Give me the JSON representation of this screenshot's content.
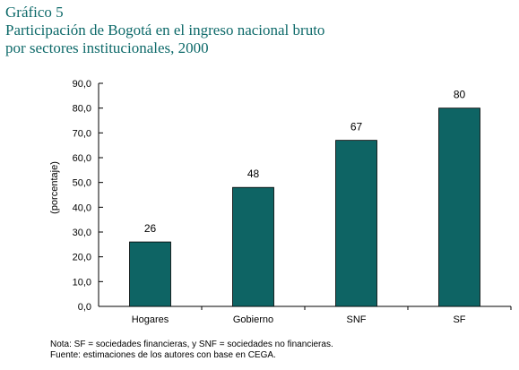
{
  "header": {
    "label": "Gráfico 5",
    "title_line1": "Participación de Bogotá en el ingreso nacional bruto",
    "title_line2": "por sectores institucionales, 2000"
  },
  "chart_data": {
    "type": "bar",
    "categories": [
      "Hogares",
      "Gobierno",
      "SNF",
      "SF"
    ],
    "values": [
      26,
      48,
      67,
      80
    ],
    "data_labels": [
      "26",
      "48",
      "67",
      "80"
    ],
    "title": "Participación de Bogotá en el ingreso nacional bruto por sectores institucionales, 2000",
    "xlabel": "",
    "ylabel": "(porcentaje)",
    "ylim": [
      0,
      90
    ],
    "yticks": [
      0,
      10,
      20,
      30,
      40,
      50,
      60,
      70,
      80,
      90
    ],
    "ytick_labels": [
      "0,0",
      "10,0",
      "20,0",
      "30,0",
      "40,0",
      "50,0",
      "60,0",
      "70,0",
      "80,0",
      "90,0"
    ],
    "grid": false,
    "colors": {
      "bar": "#0e6464",
      "title": "#0e6a6a"
    }
  },
  "notes": {
    "nota": "Nota: SF = sociedades financieras, y SNF = sociedades no financieras.",
    "fuente": "Fuente: estimaciones de los autores con base en CEGA."
  }
}
